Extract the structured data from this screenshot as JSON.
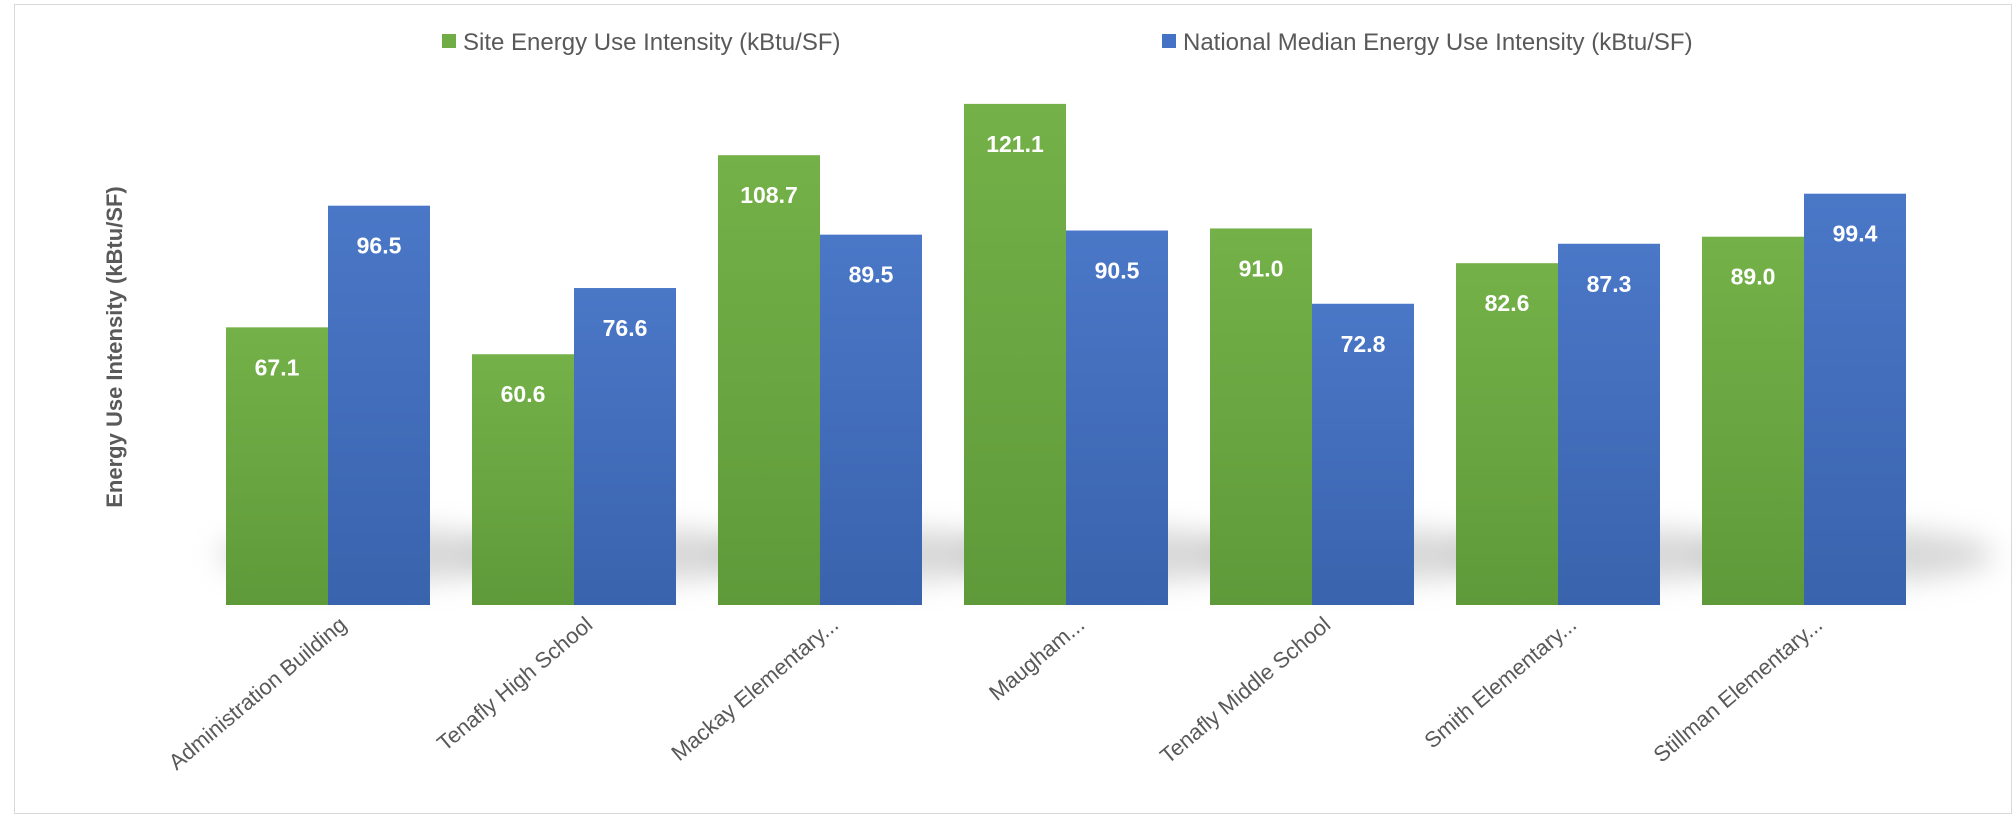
{
  "chart_data": {
    "type": "bar",
    "title": "",
    "xlabel": "",
    "ylabel": "Energy Use Intensity (kBtu/SF)",
    "categories": [
      "Administration Building",
      "Tenafly High School",
      "Mackay Elementary...",
      "Maugham...",
      "Tenafly Middle School",
      "Smith Elementary...",
      "Stillman Elementary..."
    ],
    "series": [
      {
        "name": "Site Energy Use Intensity (kBtu/SF)",
        "color": "#70ad47",
        "values": [
          67.1,
          60.6,
          108.7,
          121.1,
          91.0,
          82.6,
          89.0
        ],
        "labels": [
          "67.1",
          "60.6",
          "108.7",
          "121.1",
          "91.0",
          "82.6",
          "89.0"
        ]
      },
      {
        "name": "National Median Energy Use Intensity (kBtu/SF)",
        "color": "#4472c4",
        "values": [
          96.5,
          76.6,
          89.5,
          90.5,
          72.8,
          87.3,
          99.4
        ],
        "labels": [
          "96.5",
          "76.6",
          "89.5",
          "90.5",
          "72.8",
          "87.3",
          "99.4"
        ]
      }
    ],
    "ylim": [
      0,
      126
    ],
    "grid": false,
    "legend_position": "top"
  }
}
